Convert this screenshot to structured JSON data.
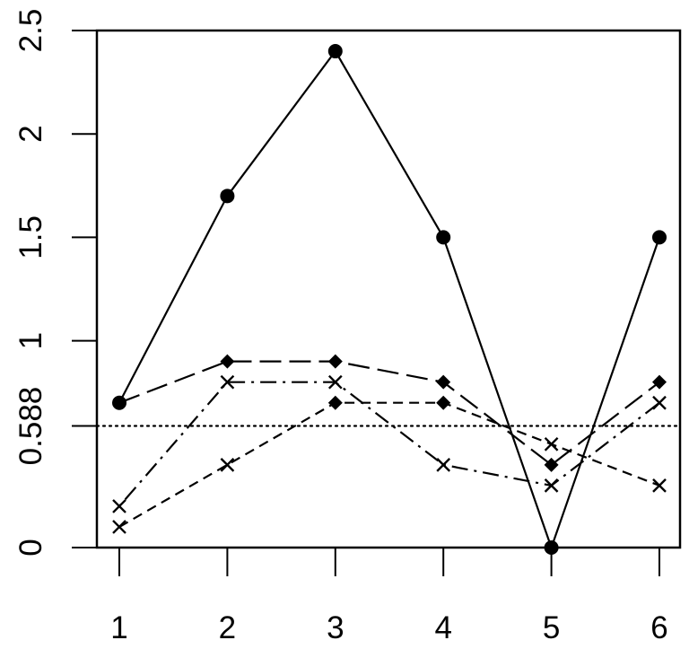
{
  "chart_data": {
    "type": "line",
    "title": "",
    "xlabel": "",
    "ylabel": "",
    "xlim": [
      1,
      6
    ],
    "ylim": [
      0,
      2.5
    ],
    "x": [
      1,
      2,
      3,
      4,
      5,
      6
    ],
    "x_ticks": [
      "1",
      "2",
      "3",
      "4",
      "5",
      "6"
    ],
    "y_ticks": [
      {
        "value": 0,
        "label": "0"
      },
      {
        "value": 0.588,
        "label": "0.588"
      },
      {
        "value": 1,
        "label": "1"
      },
      {
        "value": 1.5,
        "label": "1.5"
      },
      {
        "value": 2,
        "label": "2"
      },
      {
        "value": 2.5,
        "label": "2.5"
      }
    ],
    "reference_line": {
      "y": 0.588,
      "style": "dotted"
    },
    "grid": false,
    "legend": "none",
    "series": [
      {
        "values": [
          0.7,
          1.7,
          2.4,
          1.5,
          0.0,
          1.5
        ],
        "marker": "circle",
        "dash": "solid"
      },
      {
        "values": [
          0.7,
          0.9,
          0.9,
          0.8,
          0.4,
          0.8
        ],
        "marker": "diamond",
        "dash": "longdash"
      },
      {
        "values": [
          0.2,
          0.8,
          0.8,
          0.4,
          0.3,
          0.7
        ],
        "marker": "cross",
        "dash": "dotdash"
      },
      {
        "values": [
          0.1,
          0.4,
          0.7,
          0.7,
          0.5,
          0.3
        ],
        "marker": "mixed",
        "point_markers": [
          "cross",
          "cross",
          "diamond",
          "diamond",
          "cross",
          "cross"
        ],
        "dash": "dashed"
      }
    ]
  }
}
